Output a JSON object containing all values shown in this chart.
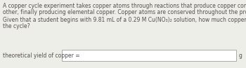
{
  "bg_color": "#eeeee8",
  "text_color": "#555050",
  "line1": "A copper cycle experiment takes copper atoms through reactions that produce copper compounds and complexes one after the",
  "line2": "other, finally producing elemental copper. Copper atoms are conserved throughout the process.",
  "line3": "Given that a student begins with 9.81 mL of a 0.29 M Cu(NO₃)₂ solution, how much copper should be isolated at the end of",
  "line4": "the cycle?",
  "label": "theoretical yield of copper =",
  "unit": "g",
  "box_color": "#ffffff",
  "box_edge_color": "#aaaaaa",
  "font_size": 5.5,
  "label_font_size": 5.5
}
